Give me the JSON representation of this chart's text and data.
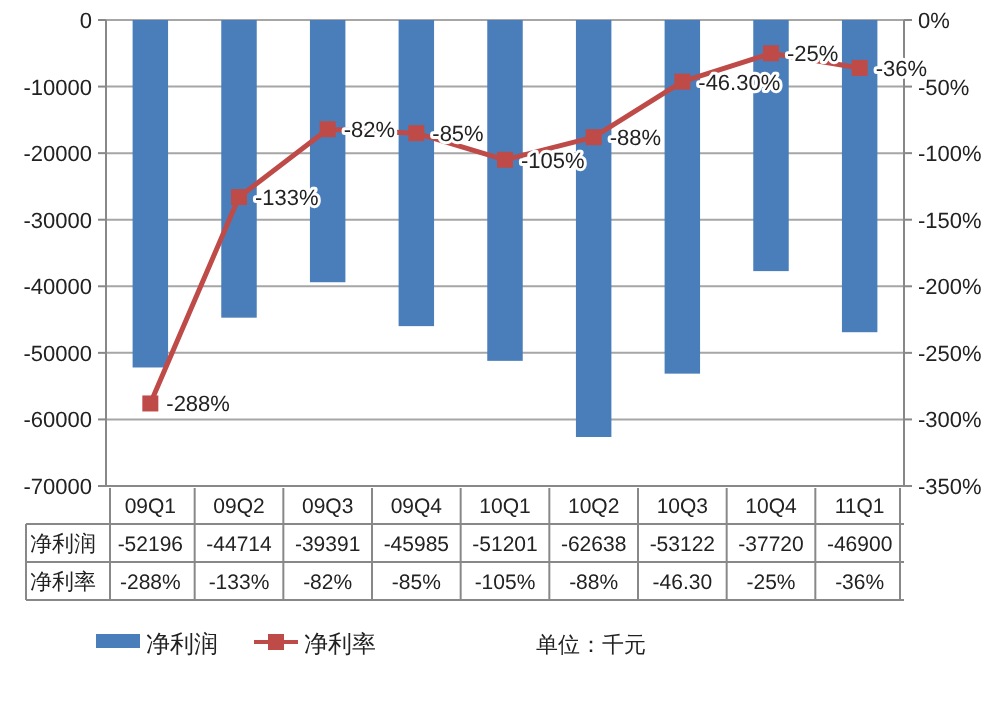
{
  "chart_data": {
    "type": "bar",
    "categories": [
      "09Q1",
      "09Q2",
      "09Q3",
      "09Q4",
      "10Q1",
      "10Q2",
      "10Q3",
      "10Q4",
      "11Q1"
    ],
    "series": [
      {
        "name": "净利润",
        "color": "#4a7ebb",
        "values": [
          -52196,
          -44714,
          -39391,
          -45985,
          -51201,
          -62638,
          -53122,
          -37720,
          -46900
        ],
        "value_labels": [
          "-52196",
          "-44714",
          "-39391",
          "-45985",
          "-51201",
          "-62638",
          "-53122",
          "-37720",
          "-46900"
        ]
      },
      {
        "name": "净利率",
        "type": "line",
        "axis": "y2",
        "color": "#be4b48",
        "marker": "square",
        "values": [
          -288,
          -133,
          -82,
          -85,
          -105,
          -88,
          -46.3,
          -25,
          -36
        ],
        "value_labels": [
          "-288%",
          "-133%",
          "-82%",
          "-85%",
          "-105%",
          "-88%",
          "-46.30%",
          "-25%",
          "-36%"
        ]
      }
    ],
    "ylim": [
      -70000,
      0
    ],
    "yticks": [
      -70000,
      -60000,
      -50000,
      -40000,
      -30000,
      -20000,
      -10000,
      0
    ],
    "y2lim": [
      -350,
      0
    ],
    "y2ticks": [
      {
        "value": -350,
        "label": "-350%"
      },
      {
        "value": -300,
        "label": "-300%"
      },
      {
        "value": -250,
        "label": "-250%"
      },
      {
        "value": -200,
        "label": "-200%"
      },
      {
        "value": -150,
        "label": "-150%"
      },
      {
        "value": -100,
        "label": "-100%"
      },
      {
        "value": -50,
        "label": "-50%"
      },
      {
        "value": 0,
        "label": "0%"
      }
    ],
    "grid": "y",
    "legend": "bottom",
    "annotations": [
      "-288%",
      "-133%",
      "-82%",
      "-85%",
      "-105%",
      "-88%",
      "-46.30",
      "-25%",
      "-36%",
      "单位：千元"
    ]
  }
}
